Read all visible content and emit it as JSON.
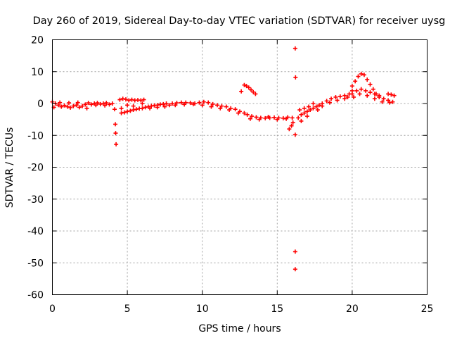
{
  "chart_data": {
    "type": "scatter",
    "title": "Day 260 of 2019, Sidereal Day-to-day VTEC variation (SDTVAR) for receiver uysg",
    "xlabel": "GPS time / hours",
    "ylabel": "SDTVAR / TECUs",
    "xlim": [
      0,
      25
    ],
    "ylim": [
      -60,
      20
    ],
    "xticks": [
      0,
      5,
      10,
      15,
      20,
      25
    ],
    "yticks": [
      20,
      10,
      0,
      -10,
      -20,
      -30,
      -40,
      -50,
      -60
    ],
    "xtick_labels": [
      "0",
      "5",
      "10",
      "15",
      "20",
      "25"
    ],
    "ytick_labels": [
      "20",
      "10",
      "0",
      "-10",
      "-20",
      "-30",
      "-40",
      "-50",
      "-60"
    ],
    "grid": true,
    "marker": "+",
    "color": "#ff0000",
    "series": [
      {
        "name": "SDTVAR",
        "points": [
          [
            0.0,
            0.5
          ],
          [
            0.2,
            0.0
          ],
          [
            0.4,
            -0.5
          ],
          [
            0.6,
            -1.0
          ],
          [
            0.8,
            -0.6
          ],
          [
            1.0,
            -1.0
          ],
          [
            1.2,
            -1.3
          ],
          [
            1.4,
            -0.8
          ],
          [
            1.6,
            -0.5
          ],
          [
            1.8,
            -1.2
          ],
          [
            2.0,
            -0.8
          ],
          [
            2.2,
            -0.3
          ],
          [
            2.4,
            0.2
          ],
          [
            2.6,
            -0.3
          ],
          [
            2.8,
            0.0
          ],
          [
            3.0,
            0.2
          ],
          [
            3.2,
            -0.2
          ],
          [
            3.4,
            0.0
          ],
          [
            3.6,
            0.2
          ],
          [
            3.8,
            -0.3
          ],
          [
            4.0,
            0.0
          ],
          [
            0.1,
            -1.2
          ],
          [
            0.5,
            0.3
          ],
          [
            1.1,
            0.2
          ],
          [
            1.7,
            0.3
          ],
          [
            2.3,
            -1.5
          ],
          [
            2.9,
            -0.5
          ],
          [
            3.5,
            -0.6
          ],
          [
            4.15,
            -1.8
          ],
          [
            4.2,
            -6.5
          ],
          [
            4.22,
            -9.3
          ],
          [
            4.25,
            -12.8
          ],
          [
            4.5,
            1.2
          ],
          [
            4.7,
            1.5
          ],
          [
            4.9,
            1.3
          ],
          [
            5.1,
            1.0
          ],
          [
            5.3,
            1.2
          ],
          [
            5.5,
            1.0
          ],
          [
            5.7,
            1.1
          ],
          [
            5.9,
            1.0
          ],
          [
            6.1,
            1.2
          ],
          [
            4.6,
            -3.0
          ],
          [
            4.8,
            -2.8
          ],
          [
            5.0,
            -2.5
          ],
          [
            5.2,
            -2.3
          ],
          [
            5.4,
            -2.0
          ],
          [
            5.6,
            -1.8
          ],
          [
            5.8,
            -1.6
          ],
          [
            6.0,
            -1.5
          ],
          [
            6.2,
            -1.2
          ],
          [
            6.4,
            -1.0
          ],
          [
            6.6,
            -0.8
          ],
          [
            6.8,
            -0.6
          ],
          [
            7.0,
            -0.5
          ],
          [
            7.2,
            -0.3
          ],
          [
            7.4,
            -0.2
          ],
          [
            7.6,
            0.0
          ],
          [
            7.8,
            -0.5
          ],
          [
            4.6,
            -1.5
          ],
          [
            5.0,
            -0.5
          ],
          [
            5.4,
            -0.8
          ],
          [
            6.0,
            0.0
          ],
          [
            6.5,
            -1.5
          ],
          [
            7.0,
            -1.2
          ],
          [
            7.5,
            -1.0
          ],
          [
            8.0,
            0.0
          ],
          [
            8.3,
            0.2
          ],
          [
            8.6,
            0.3
          ],
          [
            8.9,
            0.3
          ],
          [
            9.2,
            0.2
          ],
          [
            9.5,
            0.0
          ],
          [
            9.8,
            0.3
          ],
          [
            10.1,
            0.5
          ],
          [
            10.4,
            0.3
          ],
          [
            10.7,
            -0.2
          ],
          [
            11.0,
            -0.5
          ],
          [
            11.3,
            -0.8
          ],
          [
            11.6,
            -1.0
          ],
          [
            11.9,
            -1.5
          ],
          [
            12.2,
            -1.8
          ],
          [
            12.5,
            -2.5
          ],
          [
            8.2,
            -0.5
          ],
          [
            8.8,
            -0.3
          ],
          [
            9.4,
            -0.2
          ],
          [
            10.0,
            -0.5
          ],
          [
            10.6,
            -1.0
          ],
          [
            11.2,
            -1.5
          ],
          [
            11.8,
            -2.0
          ],
          [
            12.4,
            -3.0
          ],
          [
            12.6,
            3.8
          ],
          [
            12.8,
            5.8
          ],
          [
            12.95,
            5.5
          ],
          [
            13.1,
            5.0
          ],
          [
            13.25,
            4.3
          ],
          [
            13.4,
            3.6
          ],
          [
            13.55,
            3.0
          ],
          [
            12.8,
            -3.0
          ],
          [
            13.0,
            -3.5
          ],
          [
            13.3,
            -4.0
          ],
          [
            13.6,
            -4.3
          ],
          [
            13.9,
            -4.5
          ],
          [
            14.2,
            -4.6
          ],
          [
            14.5,
            -4.5
          ],
          [
            14.8,
            -4.4
          ],
          [
            15.1,
            -4.5
          ],
          [
            15.4,
            -4.6
          ],
          [
            15.7,
            -4.3
          ],
          [
            16.0,
            -4.5
          ],
          [
            13.2,
            -4.8
          ],
          [
            13.8,
            -5.0
          ],
          [
            14.4,
            -4.2
          ],
          [
            15.0,
            -5.0
          ],
          [
            15.6,
            -4.8
          ],
          [
            15.8,
            -8.0
          ],
          [
            15.95,
            -7.0
          ],
          [
            16.05,
            -6.0
          ],
          [
            16.2,
            17.3
          ],
          [
            16.22,
            8.2
          ],
          [
            16.2,
            -9.8
          ],
          [
            16.2,
            -46.5
          ],
          [
            16.2,
            -52.0
          ],
          [
            16.4,
            -4.5
          ],
          [
            16.6,
            -3.5
          ],
          [
            16.8,
            -3.0
          ],
          [
            17.0,
            -2.5
          ],
          [
            17.2,
            -2.0
          ],
          [
            17.4,
            -1.5
          ],
          [
            17.6,
            -1.0
          ],
          [
            17.8,
            -0.5
          ],
          [
            16.5,
            -2.0
          ],
          [
            16.8,
            -1.5
          ],
          [
            17.1,
            -1.0
          ],
          [
            17.4,
            0.0
          ],
          [
            17.7,
            -2.0
          ],
          [
            18.0,
            -0.8
          ],
          [
            16.6,
            -5.5
          ],
          [
            17.0,
            -4.0
          ],
          [
            18.0,
            0.0
          ],
          [
            18.3,
            0.8
          ],
          [
            18.6,
            1.5
          ],
          [
            18.9,
            2.0
          ],
          [
            19.2,
            2.2
          ],
          [
            19.5,
            2.5
          ],
          [
            19.8,
            3.0
          ],
          [
            20.0,
            4.0
          ],
          [
            18.5,
            0.3
          ],
          [
            19.0,
            1.0
          ],
          [
            19.5,
            1.5
          ],
          [
            19.7,
            2.0
          ],
          [
            20.0,
            5.5
          ],
          [
            20.2,
            7.0
          ],
          [
            20.4,
            8.5
          ],
          [
            20.6,
            9.3
          ],
          [
            20.8,
            9.0
          ],
          [
            21.0,
            7.5
          ],
          [
            21.2,
            6.0
          ],
          [
            21.4,
            4.5
          ],
          [
            21.6,
            3.0
          ],
          [
            21.8,
            2.0
          ],
          [
            20.0,
            3.0
          ],
          [
            20.3,
            4.0
          ],
          [
            20.6,
            4.5
          ],
          [
            20.9,
            4.0
          ],
          [
            21.2,
            3.5
          ],
          [
            21.5,
            3.0
          ],
          [
            21.8,
            2.5
          ],
          [
            22.1,
            1.5
          ],
          [
            22.4,
            1.0
          ],
          [
            22.7,
            0.5
          ],
          [
            20.1,
            2.0
          ],
          [
            20.5,
            3.0
          ],
          [
            21.0,
            2.5
          ],
          [
            21.5,
            1.5
          ],
          [
            22.0,
            0.5
          ],
          [
            22.5,
            0.3
          ],
          [
            22.4,
            3.0
          ],
          [
            22.6,
            2.8
          ],
          [
            22.8,
            2.5
          ]
        ]
      }
    ]
  }
}
